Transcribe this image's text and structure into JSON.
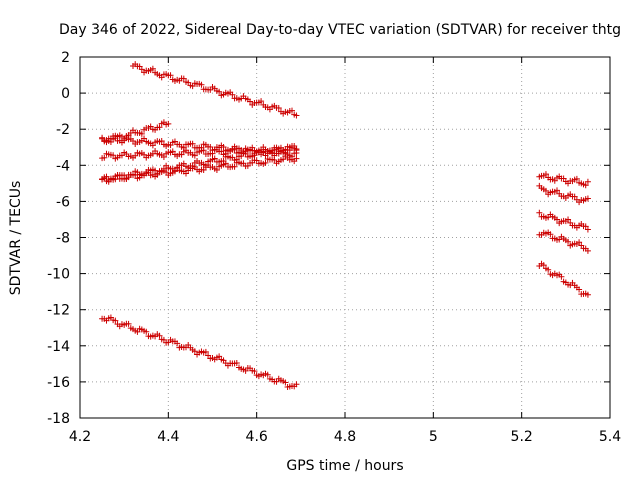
{
  "chart_data": {
    "type": "scatter",
    "title": "Day 346 of 2022, Sidereal Day-to-day VTEC variation (SDTVAR) for receiver thtg",
    "xlabel": "GPS time / hours",
    "ylabel": "SDTVAR / TECUs",
    "xlim": [
      4.2,
      5.4
    ],
    "ylim": [
      -18,
      2
    ],
    "xticks": [
      "4.2",
      "4.4",
      "4.6",
      "4.8",
      "5",
      "5.2",
      "5.4"
    ],
    "yticks": [
      "2",
      "0",
      "-2",
      "-4",
      "-6",
      "-8",
      "-10",
      "-12",
      "-14",
      "-16",
      "-18"
    ],
    "grid": true,
    "marker": "+",
    "marker_color": "#cc0000",
    "series": [
      {
        "name": "s1",
        "start": [
          4.32,
          1.5
        ],
        "end": [
          4.69,
          -1.2
        ]
      },
      {
        "name": "s2",
        "start": [
          4.25,
          -2.7
        ],
        "end": [
          4.4,
          -1.7
        ]
      },
      {
        "name": "s3",
        "start": [
          4.25,
          -2.5
        ],
        "end": [
          4.69,
          -3.4
        ]
      },
      {
        "name": "s4",
        "start": [
          4.25,
          -3.5
        ],
        "end": [
          4.69,
          -3.1
        ]
      },
      {
        "name": "s5",
        "start": [
          4.25,
          -4.8
        ],
        "end": [
          4.69,
          -3.0
        ]
      },
      {
        "name": "s6",
        "start": [
          4.25,
          -4.8
        ],
        "end": [
          4.69,
          -3.6
        ]
      },
      {
        "name": "s7",
        "start": [
          4.25,
          -12.4
        ],
        "end": [
          4.69,
          -16.3
        ]
      },
      {
        "name": "s8",
        "start": [
          5.24,
          -4.6
        ],
        "end": [
          5.35,
          -5.0
        ]
      },
      {
        "name": "s9",
        "start": [
          5.24,
          -5.3
        ],
        "end": [
          5.35,
          -6.0
        ]
      },
      {
        "name": "s10",
        "start": [
          5.24,
          -6.7
        ],
        "end": [
          5.35,
          -7.5
        ]
      },
      {
        "name": "s11",
        "start": [
          5.24,
          -7.7
        ],
        "end": [
          5.35,
          -8.6
        ]
      },
      {
        "name": "s12",
        "start": [
          5.24,
          -9.5
        ],
        "end": [
          5.35,
          -11.2
        ]
      }
    ]
  }
}
